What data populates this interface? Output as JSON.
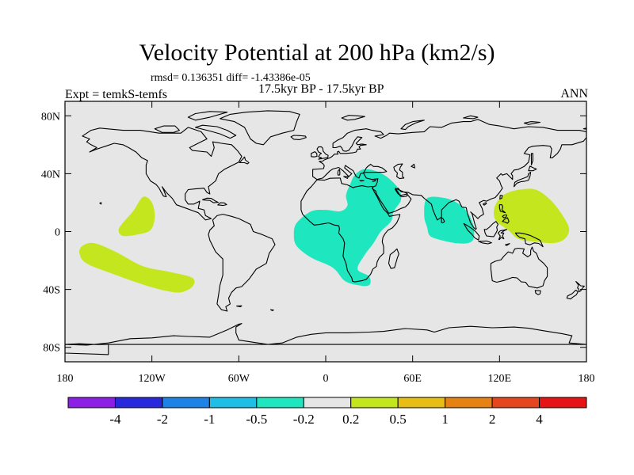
{
  "header": {
    "title": "Velocity Potential at 200 hPa (km2/s)",
    "stats": "rmsd= 0.136351 diff= -1.43386e-05",
    "experiment": "Expt = temkS-temfs",
    "period": "17.5kyr BP - 17.5kyr BP",
    "season": "ANN"
  },
  "chart_data": {
    "type": "contour-map",
    "title": "Velocity Potential at 200 hPa (km2/s)",
    "projection": "cylindrical-equidistant",
    "xlim": [
      -180,
      180
    ],
    "ylim": [
      -90,
      90
    ],
    "x_ticks": [
      {
        "lon": -180,
        "label": "180"
      },
      {
        "lon": -120,
        "label": "120W"
      },
      {
        "lon": -60,
        "label": "60W"
      },
      {
        "lon": 0,
        "label": "0"
      },
      {
        "lon": 60,
        "label": "60E"
      },
      {
        "lon": 120,
        "label": "120E"
      },
      {
        "lon": 180,
        "label": "180"
      }
    ],
    "y_ticks": [
      {
        "lat": 80,
        "label": "80N"
      },
      {
        "lat": 40,
        "label": "40N"
      },
      {
        "lat": 0,
        "label": "0"
      },
      {
        "lat": -40,
        "label": "40S"
      },
      {
        "lat": -80,
        "label": "80S"
      }
    ],
    "colorbar": {
      "boundaries": [
        "-4",
        "-2",
        "-1",
        "-0.5",
        "-0.2",
        "0.2",
        "0.5",
        "1",
        "2",
        "4"
      ],
      "colors": [
        "#8c1ee6",
        "#2828dc",
        "#1e82e6",
        "#1ebee6",
        "#1ee6be",
        "#e6e6e6",
        "#c3e61e",
        "#e6be14",
        "#e68214",
        "#e6461e",
        "#e61414"
      ]
    },
    "background_color": "#e6e6e6",
    "regions": [
      {
        "name": "north-pacific-positive",
        "category": "0.2 to 0.5",
        "color": "#c3e61e",
        "outline": [
          [
            -126,
            24
          ],
          [
            -120,
            20
          ],
          [
            -118,
            10
          ],
          [
            -121,
            1
          ],
          [
            -130,
            -2
          ],
          [
            -140,
            -3
          ],
          [
            -143,
            1
          ],
          [
            -140,
            6
          ],
          [
            -133,
            14
          ]
        ]
      },
      {
        "name": "south-pacific-positive",
        "category": "0.2 to 0.5",
        "color": "#c3e61e",
        "outline": [
          [
            -168,
            -10
          ],
          [
            -160,
            -8
          ],
          [
            -145,
            -14
          ],
          [
            -126,
            -24
          ],
          [
            -107,
            -28
          ],
          [
            -92,
            -32
          ],
          [
            -92,
            -38
          ],
          [
            -100,
            -42
          ],
          [
            -110,
            -41
          ],
          [
            -125,
            -37
          ],
          [
            -145,
            -30
          ],
          [
            -165,
            -22
          ],
          [
            -170,
            -15
          ]
        ]
      },
      {
        "name": "west-pacific-positive",
        "category": "0.2 to 0.5",
        "color": "#c3e61e",
        "outline": [
          [
            124,
            26
          ],
          [
            134,
            29
          ],
          [
            145,
            29
          ],
          [
            155,
            22
          ],
          [
            163,
            12
          ],
          [
            168,
            2
          ],
          [
            165,
            -5
          ],
          [
            157,
            -8
          ],
          [
            145,
            -7
          ],
          [
            133,
            -5
          ],
          [
            126,
            1
          ],
          [
            118,
            7
          ],
          [
            116,
            13
          ],
          [
            118,
            20
          ]
        ]
      },
      {
        "name": "africa-arabia-negative",
        "category": "-0.5 to -0.2",
        "color": "#1ee6be",
        "outline": [
          [
            -10,
            14
          ],
          [
            0,
            15
          ],
          [
            10,
            14
          ],
          [
            15,
            18
          ],
          [
            14,
            25
          ],
          [
            17,
            33
          ],
          [
            20,
            39
          ],
          [
            26,
            43
          ],
          [
            34,
            42
          ],
          [
            42,
            38
          ],
          [
            50,
            30
          ],
          [
            52,
            22
          ],
          [
            47,
            14
          ],
          [
            45,
            7
          ],
          [
            38,
            0
          ],
          [
            33,
            -8
          ],
          [
            27,
            -16
          ],
          [
            22,
            -26
          ],
          [
            30,
            -31
          ],
          [
            30,
            -37
          ],
          [
            22,
            -37
          ],
          [
            13,
            -34
          ],
          [
            5,
            -25
          ],
          [
            -10,
            -18
          ],
          [
            -20,
            -10
          ],
          [
            -22,
            -2
          ],
          [
            -20,
            6
          ]
        ]
      },
      {
        "name": "indian-ocean-negative",
        "category": "-0.5 to -0.2",
        "color": "#1ee6be",
        "outline": [
          [
            70,
            23
          ],
          [
            83,
            23
          ],
          [
            92,
            19
          ],
          [
            98,
            13
          ],
          [
            102,
            4
          ],
          [
            102,
            -5
          ],
          [
            98,
            -8
          ],
          [
            90,
            -8
          ],
          [
            80,
            -6
          ],
          [
            72,
            -3
          ],
          [
            70,
            3
          ],
          [
            68,
            11
          ]
        ]
      }
    ]
  }
}
